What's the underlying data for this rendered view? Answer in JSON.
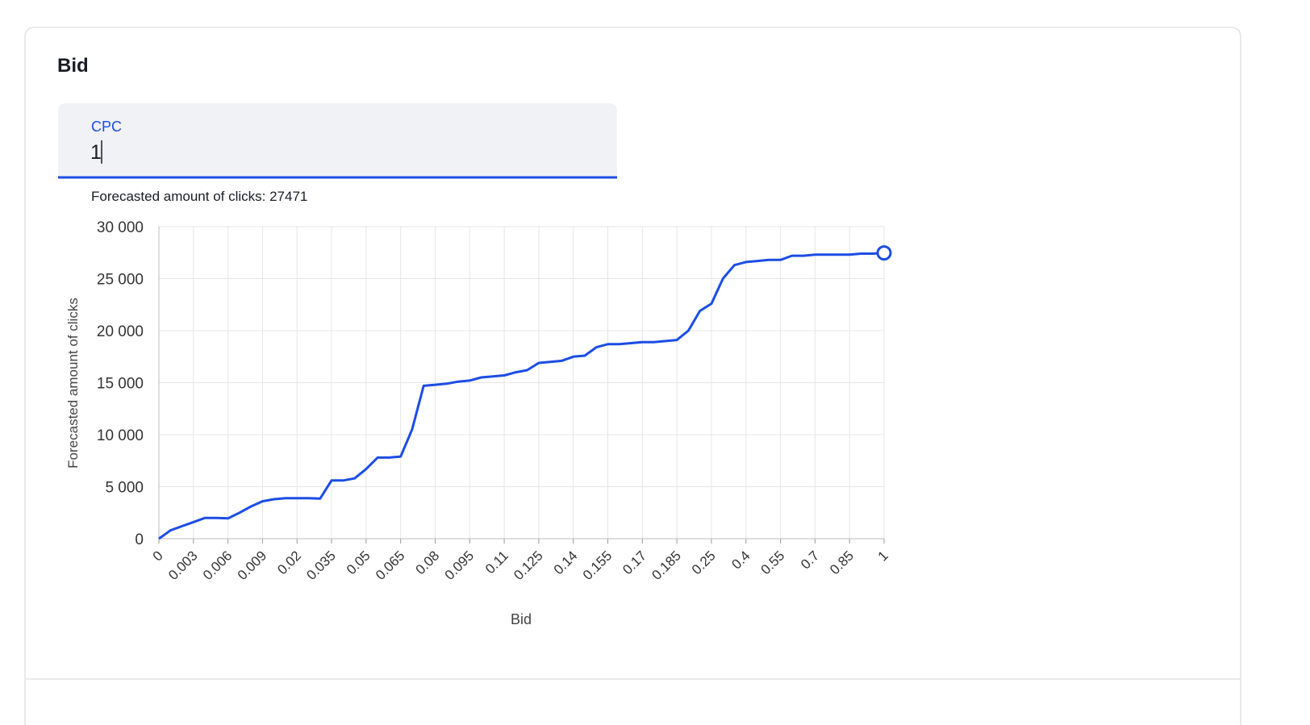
{
  "section_title": "Bid",
  "input": {
    "label": "CPC",
    "value": "1",
    "help": "Forecasted amount of clicks: 27471"
  },
  "chart_data": {
    "type": "line",
    "x_label": "Bid",
    "y_label": "Forecasted amount of clicks",
    "categories": [
      "0",
      null,
      null,
      "0.003",
      null,
      null,
      "0.006",
      null,
      null,
      "0.009",
      null,
      null,
      "0.02",
      null,
      null,
      "0.035",
      null,
      null,
      "0.05",
      null,
      null,
      "0.065",
      null,
      null,
      "0.08",
      null,
      null,
      "0.095",
      null,
      null,
      "0.11",
      null,
      null,
      "0.125",
      null,
      null,
      "0.14",
      null,
      null,
      "0.155",
      null,
      null,
      "0.17",
      null,
      null,
      "0.185",
      null,
      null,
      "0.25",
      null,
      null,
      "0.4",
      null,
      null,
      "0.55",
      null,
      null,
      "0.7",
      null,
      null,
      "0.85",
      null,
      null,
      "1"
    ],
    "series": [
      {
        "name": "Forecasted amount of clicks",
        "color": "#1b4de4",
        "values": [
          0,
          800,
          1200,
          1600,
          2000,
          2000,
          1950,
          2500,
          3100,
          3600,
          3800,
          3900,
          3900,
          3900,
          3850,
          5600,
          5600,
          5800,
          6700,
          7800,
          7800,
          7900,
          10500,
          14700,
          14800,
          14900,
          15100,
          15200,
          15500,
          15600,
          15700,
          16000,
          16200,
          16900,
          17000,
          17100,
          17500,
          17600,
          18400,
          18700,
          18700,
          18800,
          18900,
          18900,
          19000,
          19100,
          20000,
          21900,
          22600,
          25000,
          26300,
          26600,
          26700,
          26800,
          26800,
          27200,
          27200,
          27300,
          27300,
          27300,
          27300,
          27400,
          27400,
          27471
        ]
      }
    ],
    "ylim": [
      0,
      30000
    ],
    "yticks": [
      {
        "value": 0,
        "label": "0"
      },
      {
        "value": 5000,
        "label": "5 000"
      },
      {
        "value": 10000,
        "label": "10 000"
      },
      {
        "value": 15000,
        "label": "15 000"
      },
      {
        "value": 20000,
        "label": "20 000"
      },
      {
        "value": 25000,
        "label": "25 000"
      },
      {
        "value": 30000,
        "label": "30 000"
      }
    ],
    "grid": true
  }
}
